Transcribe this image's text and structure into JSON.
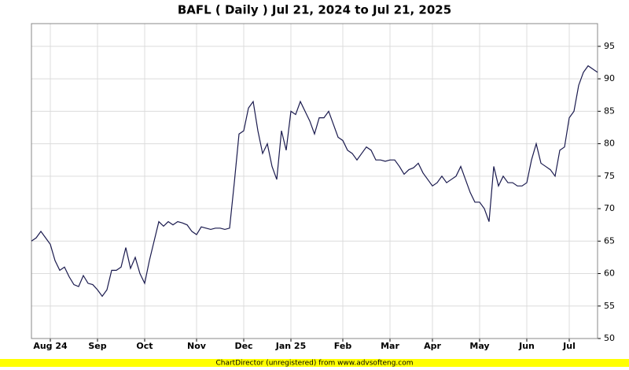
{
  "chart_data": {
    "type": "line",
    "title": "BAFL ( Daily ) Jul 21, 2024 to Jul 21, 2025",
    "footer": "ChartDirector (unregistered) from www.advsofteng.com",
    "categories": [
      null,
      null,
      null,
      null,
      "Aug 24",
      null,
      null,
      null,
      null,
      null,
      null,
      null,
      null,
      null,
      "Sep",
      null,
      null,
      null,
      null,
      null,
      null,
      null,
      null,
      null,
      "Oct",
      null,
      null,
      null,
      null,
      null,
      null,
      null,
      null,
      null,
      null,
      "Nov",
      null,
      null,
      null,
      null,
      null,
      null,
      null,
      null,
      null,
      "Dec",
      null,
      null,
      null,
      null,
      null,
      null,
      null,
      null,
      null,
      "Jan 25",
      null,
      null,
      null,
      null,
      null,
      null,
      null,
      null,
      null,
      null,
      "Feb",
      null,
      null,
      null,
      null,
      null,
      null,
      null,
      null,
      null,
      "Mar",
      null,
      null,
      null,
      null,
      null,
      null,
      null,
      null,
      "Apr",
      null,
      null,
      null,
      null,
      null,
      null,
      null,
      null,
      null,
      "May",
      null,
      null,
      null,
      null,
      null,
      null,
      null,
      null,
      null,
      "Jun",
      null,
      null,
      null,
      null,
      null,
      null,
      null,
      null,
      "Jul",
      null,
      null,
      null,
      null,
      null,
      null
    ],
    "series": [
      {
        "name": "BAFL",
        "color": "#1a1a4e",
        "values": [
          65,
          65.5,
          66.5,
          65.5,
          64.5,
          62,
          60.5,
          61,
          59.5,
          58.3,
          58,
          59.7,
          58.5,
          58.3,
          57.5,
          56.5,
          57.5,
          60.5,
          60.5,
          61,
          64,
          60.8,
          62.5,
          60,
          58.5,
          62,
          65,
          68,
          67.3,
          68,
          67.5,
          68,
          67.8,
          67.5,
          66.5,
          66,
          67.2,
          67,
          66.8,
          67,
          67,
          66.8,
          67,
          74,
          81.5,
          82,
          85.5,
          86.5,
          82,
          78.5,
          80,
          76.5,
          74.5,
          82,
          79,
          85,
          84.5,
          86.5,
          85,
          83.5,
          81.5,
          84,
          84,
          85,
          83,
          81,
          80.5,
          79,
          78.5,
          77.5,
          78.5,
          79.5,
          79,
          77.5,
          77.5,
          77.3,
          77.5,
          77.5,
          76.5,
          75.3,
          76,
          76.3,
          77,
          75.5,
          74.5,
          73.5,
          74,
          75,
          74,
          74.5,
          75,
          76.5,
          74.5,
          72.5,
          71,
          71,
          70,
          68,
          76.5,
          73.5,
          75,
          74,
          74,
          73.5,
          73.5,
          74,
          77.5,
          80,
          77,
          76.5,
          76,
          75,
          79,
          79.5,
          84,
          85,
          89,
          91,
          92,
          91.5,
          91
        ]
      }
    ],
    "ylim": [
      50,
      98.5
    ],
    "yticks": [
      50,
      55,
      60,
      65,
      70,
      75,
      80,
      85,
      90,
      95
    ],
    "grid": true
  }
}
